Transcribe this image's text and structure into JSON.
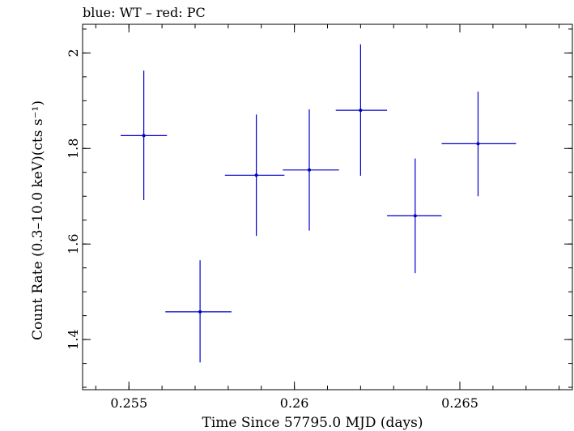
{
  "chart_data": {
    "type": "scatter",
    "title": "blue: WT – red: PC",
    "xlabel": "Time Since 57795.0 MJD (days)",
    "ylabel": "Count Rate (0.3–10.0 keV)(cts s⁻¹)",
    "xlim": [
      0.2536,
      0.2684
    ],
    "ylim": [
      1.295,
      2.06
    ],
    "x_ticks": [
      {
        "value": 0.255,
        "label": "0.255"
      },
      {
        "value": 0.26,
        "label": "0.26"
      },
      {
        "value": 0.265,
        "label": "0.265"
      }
    ],
    "y_ticks": [
      {
        "value": 1.4,
        "label": "1.4"
      },
      {
        "value": 1.6,
        "label": "1.6"
      },
      {
        "value": 1.8,
        "label": "1.8"
      },
      {
        "value": 2.0,
        "label": "2"
      }
    ],
    "x_minor_step": 0.001,
    "y_minor_step": 0.05,
    "grid": false,
    "series": [
      {
        "color": "#0000cc",
        "points": [
          {
            "x": 0.25545,
            "y": 1.827,
            "xlo": 0.25475,
            "xhi": 0.25615,
            "ylo": 1.692,
            "yhi": 1.963
          },
          {
            "x": 0.25715,
            "y": 1.458,
            "xlo": 0.2561,
            "xhi": 0.2581,
            "ylo": 1.352,
            "yhi": 1.566
          },
          {
            "x": 0.25885,
            "y": 1.744,
            "xlo": 0.2579,
            "xhi": 0.2597,
            "ylo": 1.617,
            "yhi": 1.871
          },
          {
            "x": 0.26045,
            "y": 1.755,
            "xlo": 0.25965,
            "xhi": 0.26135,
            "ylo": 1.628,
            "yhi": 1.882
          },
          {
            "x": 0.262,
            "y": 1.88,
            "xlo": 0.26125,
            "xhi": 0.2628,
            "ylo": 1.743,
            "yhi": 2.018
          },
          {
            "x": 0.26365,
            "y": 1.659,
            "xlo": 0.2628,
            "xhi": 0.26445,
            "ylo": 1.539,
            "yhi": 1.779
          },
          {
            "x": 0.26555,
            "y": 1.81,
            "xlo": 0.26445,
            "xhi": 0.2667,
            "ylo": 1.7,
            "yhi": 1.919
          }
        ]
      }
    ]
  }
}
